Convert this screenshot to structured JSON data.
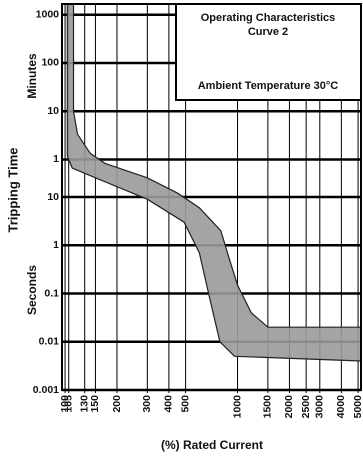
{
  "chart_data": {
    "type": "band",
    "title": "Operating Characteristics",
    "subtitle": "Curve 2",
    "annotation": "Ambient Temperature 30°C",
    "y_label": "Tripping Time",
    "y_label_upper": "Minutes",
    "y_label_lower": "Seconds",
    "x_label": "(%) Rated Current",
    "log_x": true,
    "log_y": true,
    "grid": true,
    "color": "#9a9a9a",
    "xlim": [
      96,
      5200
    ],
    "ylim": [
      0.001,
      100000
    ],
    "xticks": [
      100,
      105,
      130,
      150,
      200,
      300,
      400,
      500,
      1000,
      1500,
      2000,
      2500,
      3000,
      4000,
      5000
    ],
    "yticks": [
      {
        "value": 60000,
        "label": "1000"
      },
      {
        "value": 6000,
        "label": "100"
      },
      {
        "value": 600,
        "label": "10"
      },
      {
        "value": 60,
        "label": "1"
      },
      10,
      1,
      0.1,
      0.01,
      0.001
    ],
    "max_time": {
      "x": [
        112,
        112,
        118,
        140,
        170,
        300,
        450,
        600,
        800,
        900,
        1000,
        1200,
        1500,
        5200
      ],
      "y": [
        100000,
        600,
        200,
        80,
        50,
        25,
        12,
        6,
        2,
        0.5,
        0.15,
        0.04,
        0.02,
        0.02
      ]
    },
    "min_time": {
      "x": [
        103,
        103,
        110,
        150,
        300,
        490,
        600,
        690,
        790,
        960,
        5200
      ],
      "y": [
        100000,
        70,
        40,
        25,
        9,
        3,
        0.7,
        0.08,
        0.01,
        0.005,
        0.004
      ]
    }
  }
}
